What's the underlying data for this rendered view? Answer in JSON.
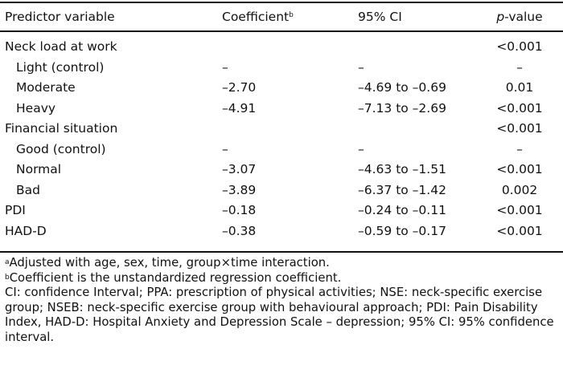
{
  "header": {
    "predictor": "Predictor variable",
    "coefficient": "Coefficient",
    "coefficient_sup": "b",
    "ci": "95% CI",
    "p_italic": "p",
    "p_rest": "-value"
  },
  "rows": [
    {
      "label": "Neck load at work",
      "coef": "",
      "ci": "",
      "p": "<0.001"
    },
    {
      "label": "Light (control)",
      "coef": "–",
      "ci": "–",
      "p": "–"
    },
    {
      "label": "Moderate",
      "coef": "–2.70",
      "ci": "–4.69 to –0.69",
      "p": "0.01"
    },
    {
      "label": "Heavy",
      "coef": "–4.91",
      "ci": "–7.13 to –2.69",
      "p": "<0.001"
    },
    {
      "label": "Financial situation",
      "coef": "",
      "ci": "",
      "p": "<0.001"
    },
    {
      "label": "Good (control)",
      "coef": "–",
      "ci": "–",
      "p": "–"
    },
    {
      "label": "Normal",
      "coef": "–3.07",
      "ci": "–4.63 to –1.51",
      "p": "<0.001"
    },
    {
      "label": "Bad",
      "coef": "–3.89",
      "ci": "–6.37 to –1.42",
      "p": "0.002"
    },
    {
      "label": "PDI",
      "coef": "–0.18",
      "ci": "–0.24 to –0.11",
      "p": "<0.001"
    },
    {
      "label": "HAD-D",
      "coef": "–0.38",
      "ci": "–0.59 to –0.17",
      "p": "<0.001"
    }
  ],
  "notes": {
    "a_sup": "a",
    "a_text": "Adjusted with age, sex, time, group×time interaction.",
    "b_sup": "b",
    "b_text": "Coefficient is the unstandardized regression coefficient.",
    "abbrev": "CI: confidence Interval; PPA: prescription of physical activities; NSE: neck-specific exercise group; NSEB: neck-specific exercise group with behavioural approach; PDI: Pain Disability Index, HAD-D: Hospital Anxiety and Depression Scale – depression; 95% CI: 95% confidence interval."
  }
}
